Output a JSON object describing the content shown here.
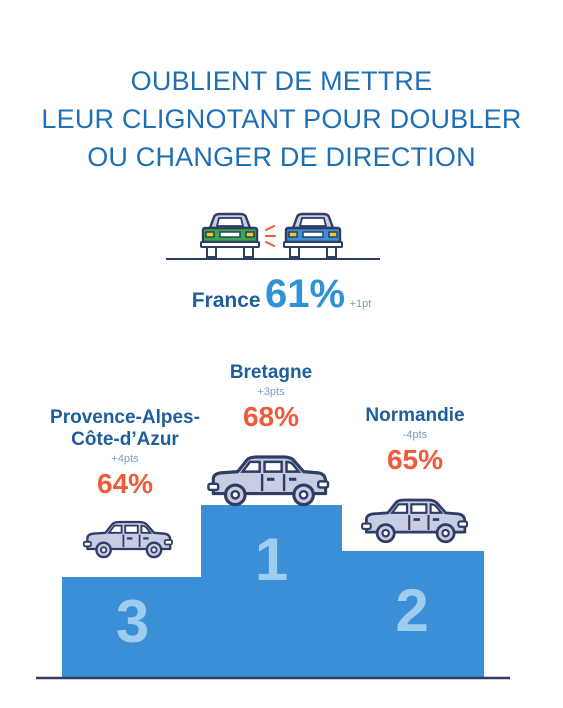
{
  "title": {
    "line1": "OUBLIENT DE METTRE",
    "line2": "LEUR CLIGNOTANT POUR DOUBLER",
    "line3": "OU CHANGER DE DIRECTION"
  },
  "national": {
    "label": "France",
    "percent": "61%",
    "change": "+1pt"
  },
  "podium": [
    {
      "rank": "1",
      "name": "Bretagne",
      "change": "+3pts",
      "percent": "68%"
    },
    {
      "rank": "2",
      "name": "Normandie",
      "change": "-4pts",
      "percent": "65%"
    },
    {
      "rank": "3",
      "name_line1": "Provence-Alpes-",
      "name_line2": "Côte-d’Azur",
      "change": "+4pts",
      "percent": "64%"
    }
  ],
  "colors": {
    "title": "#1f6fb5",
    "region_name": "#1f5e9e",
    "percent_region": "#f05a3a",
    "percent_france": "#2e93d6",
    "podium": "#3b8fd6",
    "podium_number": "#9ecdf0",
    "car_body": "#c9cde4",
    "car_outline": "#2e3d63",
    "car_green": "#3aa84a",
    "car_blue": "#3b8fd6",
    "lights": "#f4c72a"
  },
  "icons": [
    "car-icon",
    "blinker-signal-icon"
  ]
}
